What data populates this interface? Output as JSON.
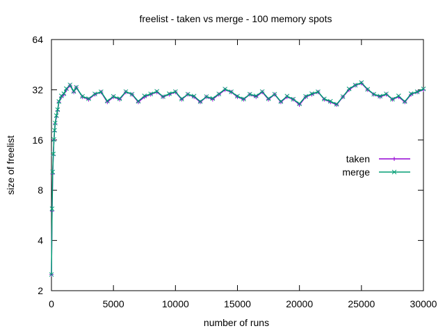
{
  "chart_data": {
    "type": "line",
    "title": "freelist - taken vs merge - 100 memory spots",
    "xlabel": "number of runs",
    "ylabel": "size of freelist",
    "xlim": [
      0,
      30000
    ],
    "ylim": [
      2,
      64
    ],
    "yscale": "log2",
    "x_ticks": [
      0,
      5000,
      10000,
      15000,
      20000,
      25000,
      30000
    ],
    "y_ticks": [
      2,
      4,
      8,
      16,
      32,
      64
    ],
    "x_tick_labels": [
      "0",
      "5000",
      "10000",
      "15000",
      "20000",
      "25000",
      "30000"
    ],
    "y_tick_labels": [
      "2",
      "4",
      "8",
      "16",
      "32",
      "64"
    ],
    "legend_position": "right",
    "series": [
      {
        "name": "taken",
        "color": "#9400d3",
        "marker": "plus",
        "x": [
          0,
          50,
          100,
          150,
          200,
          250,
          300,
          400,
          500,
          600,
          800,
          1000,
          1200,
          1500,
          1800,
          2000,
          2500,
          3000,
          3500,
          4000,
          4500,
          5000,
          5500,
          6000,
          6500,
          7000,
          7500,
          8000,
          8500,
          9000,
          9500,
          10000,
          10500,
          11000,
          11500,
          12000,
          12500,
          13000,
          13500,
          14000,
          14500,
          15000,
          15500,
          16000,
          16500,
          17000,
          17500,
          18000,
          18500,
          19000,
          19500,
          20000,
          20500,
          21000,
          21500,
          22000,
          22500,
          23000,
          23500,
          24000,
          24500,
          25000,
          25500,
          26000,
          26500,
          27000,
          27500,
          28000,
          28500,
          29000,
          29500,
          30000
        ],
        "y": [
          2.5,
          6,
          10,
          13,
          16,
          18,
          20,
          22,
          24,
          27,
          29,
          30,
          32,
          34,
          31,
          33,
          29,
          28,
          30,
          31,
          27,
          29,
          28,
          31,
          30,
          27,
          29,
          30,
          31,
          29,
          30,
          31,
          28,
          30,
          29,
          27,
          29,
          28,
          30,
          32,
          31,
          29,
          28,
          30,
          29,
          31,
          28,
          30,
          27,
          29,
          28,
          26,
          29,
          30,
          31,
          28,
          27,
          26,
          29,
          32,
          34,
          35,
          32,
          30,
          29,
          30,
          28,
          29,
          27,
          30,
          31,
          32
        ]
      },
      {
        "name": "merge",
        "color": "#009e73",
        "marker": "x",
        "x": [
          0,
          50,
          100,
          150,
          200,
          250,
          300,
          400,
          500,
          600,
          800,
          1000,
          1200,
          1500,
          1800,
          2000,
          2500,
          3000,
          3500,
          4000,
          4500,
          5000,
          5500,
          6000,
          6500,
          7000,
          7500,
          8000,
          8500,
          9000,
          9500,
          10000,
          10500,
          11000,
          11500,
          12000,
          12500,
          13000,
          13500,
          14000,
          14500,
          15000,
          15500,
          16000,
          16500,
          17000,
          17500,
          18000,
          18500,
          19000,
          19500,
          20000,
          20500,
          21000,
          21500,
          22000,
          22500,
          23000,
          23500,
          24000,
          24500,
          25000,
          25500,
          26000,
          26500,
          27000,
          27500,
          28000,
          28500,
          29000,
          29500,
          30000
        ],
        "y": [
          2.5,
          6.2,
          10.3,
          13.2,
          16.1,
          18.3,
          20.2,
          22.4,
          24.3,
          27.2,
          29.4,
          30.3,
          32.5,
          34.2,
          31.3,
          33.1,
          29.2,
          28.3,
          30.2,
          31.1,
          27.4,
          29.2,
          28.3,
          31.2,
          30.1,
          27.3,
          29.4,
          30.2,
          31.3,
          29.1,
          30.3,
          31.2,
          28.2,
          30.1,
          29.3,
          27.2,
          29.1,
          28.4,
          30.2,
          32.3,
          31.1,
          29.3,
          28.2,
          30.1,
          29.4,
          31.2,
          28.3,
          30.1,
          27.2,
          29.3,
          28.1,
          26.4,
          29.2,
          30.3,
          31.1,
          28.2,
          27.3,
          26.2,
          29.1,
          32.4,
          34.1,
          35.3,
          32.2,
          30.1,
          29.3,
          30.2,
          28.1,
          29.4,
          27.2,
          30.3,
          31.1,
          32.4
        ]
      }
    ]
  }
}
